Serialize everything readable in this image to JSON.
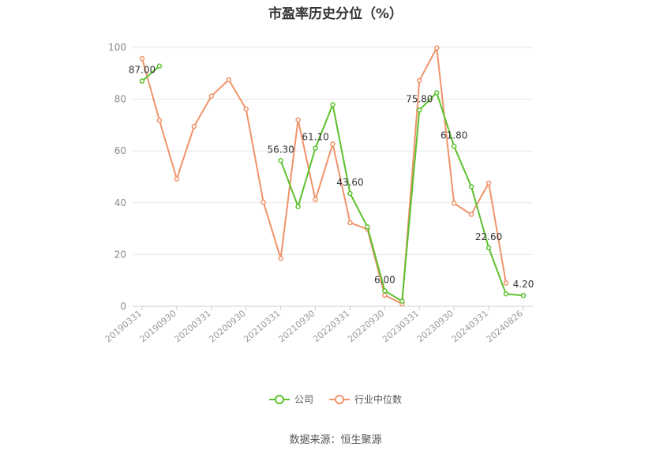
{
  "chart_data": {
    "type": "line",
    "title": "市盈率历史分位（%）",
    "x_tick_labels": [
      "20190331",
      "20190930",
      "20200331",
      "20200930",
      "20210331",
      "20210930",
      "20220331",
      "20220930",
      "20230331",
      "20230930",
      "20240331",
      "20240826"
    ],
    "ylim": [
      0,
      100
    ],
    "yticks": [
      0,
      20,
      40,
      60,
      80,
      100
    ],
    "grid": true,
    "legend_position": "bottom",
    "series": [
      {
        "name": "公司",
        "color": "#5cc12e",
        "values": [
          87.0,
          92.8,
          null,
          null,
          null,
          null,
          null,
          null,
          56.3,
          38.5,
          61.1,
          77.9,
          43.6,
          30.7,
          6.0,
          2.0,
          75.8,
          82.5,
          61.8,
          46.2,
          22.6,
          4.8,
          4.2
        ],
        "labels": {
          "0": "87.00",
          "8": "56.30",
          "10": "61.10",
          "12": "43.60",
          "14": "6.00",
          "16": "75.80",
          "18": "61.80",
          "20": "22.60",
          "22": "4.20"
        }
      },
      {
        "name": "行业中位数",
        "color": "#f0936a",
        "values": [
          95.7,
          71.8,
          49.2,
          69.5,
          81.2,
          87.5,
          76.2,
          40.2,
          18.5,
          72.0,
          41.2,
          62.7,
          32.3,
          29.8,
          4.3,
          1.0,
          87.2,
          99.8,
          39.8,
          35.5,
          47.6,
          9.0,
          null
        ]
      }
    ]
  },
  "source_text": "数据来源：恒生聚源"
}
